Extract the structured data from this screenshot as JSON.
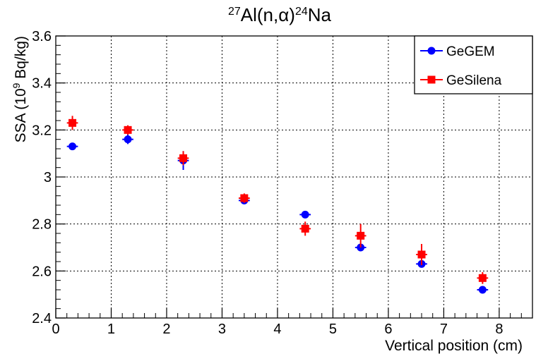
{
  "chart_data": {
    "type": "scatter",
    "title": "²⁷Al(n,α)²⁴Na",
    "title_parts": {
      "pre_sup": "27",
      "main": "Al(n,",
      "greek": "α",
      "close": ")",
      "post_sup": "24",
      "tail": "Na"
    },
    "xlabel": "Vertical position (cm)",
    "ylabel": "SSA (10⁹ Bq/kg)",
    "ylabel_parts": {
      "pre": "SSA (10",
      "sup": "9",
      "post": " Bq/kg)"
    },
    "xlim": [
      0,
      8.6
    ],
    "ylim": [
      2.4,
      3.6
    ],
    "x_ticks": [
      0,
      1,
      2,
      3,
      4,
      5,
      6,
      7,
      8
    ],
    "y_ticks": [
      2.4,
      2.6,
      2.8,
      3.0,
      3.2,
      3.4,
      3.6
    ],
    "x_tick_labels": [
      "0",
      "1",
      "2",
      "3",
      "4",
      "5",
      "6",
      "7",
      "8"
    ],
    "y_tick_labels": [
      "2.4",
      "2.6",
      "2.8",
      "3",
      "3.2",
      "3.4",
      "3.6"
    ],
    "grid": true,
    "legend_position": "top-right",
    "series": [
      {
        "name": "GeGEM",
        "color": "#0000ff",
        "marker": "circle",
        "points": [
          {
            "x": 0.3,
            "y": 3.13,
            "xerr": 0.1,
            "yerr": 0.005
          },
          {
            "x": 1.3,
            "y": 3.16,
            "xerr": 0.1,
            "yerr": 0.02
          },
          {
            "x": 2.3,
            "y": 3.07,
            "xerr": 0.1,
            "yerr": 0.04
          },
          {
            "x": 3.4,
            "y": 2.9,
            "xerr": 0.1,
            "yerr": 0.015
          },
          {
            "x": 4.5,
            "y": 2.84,
            "xerr": 0.1,
            "yerr": 0.005
          },
          {
            "x": 5.5,
            "y": 2.7,
            "xerr": 0.1,
            "yerr": 0.005
          },
          {
            "x": 6.6,
            "y": 2.63,
            "xerr": 0.1,
            "yerr": 0.005
          },
          {
            "x": 7.7,
            "y": 2.52,
            "xerr": 0.1,
            "yerr": 0.005
          }
        ]
      },
      {
        "name": "GeSilena",
        "color": "#ff0000",
        "marker": "square",
        "points": [
          {
            "x": 0.3,
            "y": 3.23,
            "xerr": 0.1,
            "yerr": 0.03
          },
          {
            "x": 1.3,
            "y": 3.2,
            "xerr": 0.1,
            "yerr": 0.02
          },
          {
            "x": 2.3,
            "y": 3.08,
            "xerr": 0.1,
            "yerr": 0.03
          },
          {
            "x": 3.4,
            "y": 2.91,
            "xerr": 0.1,
            "yerr": 0.02
          },
          {
            "x": 4.5,
            "y": 2.78,
            "xerr": 0.1,
            "yerr": 0.03
          },
          {
            "x": 5.5,
            "y": 2.75,
            "xerr": 0.1,
            "yerr": 0.05
          },
          {
            "x": 6.6,
            "y": 2.67,
            "xerr": 0.1,
            "yerr": 0.045
          },
          {
            "x": 7.7,
            "y": 2.57,
            "xerr": 0.1,
            "yerr": 0.025
          }
        ]
      }
    ]
  }
}
